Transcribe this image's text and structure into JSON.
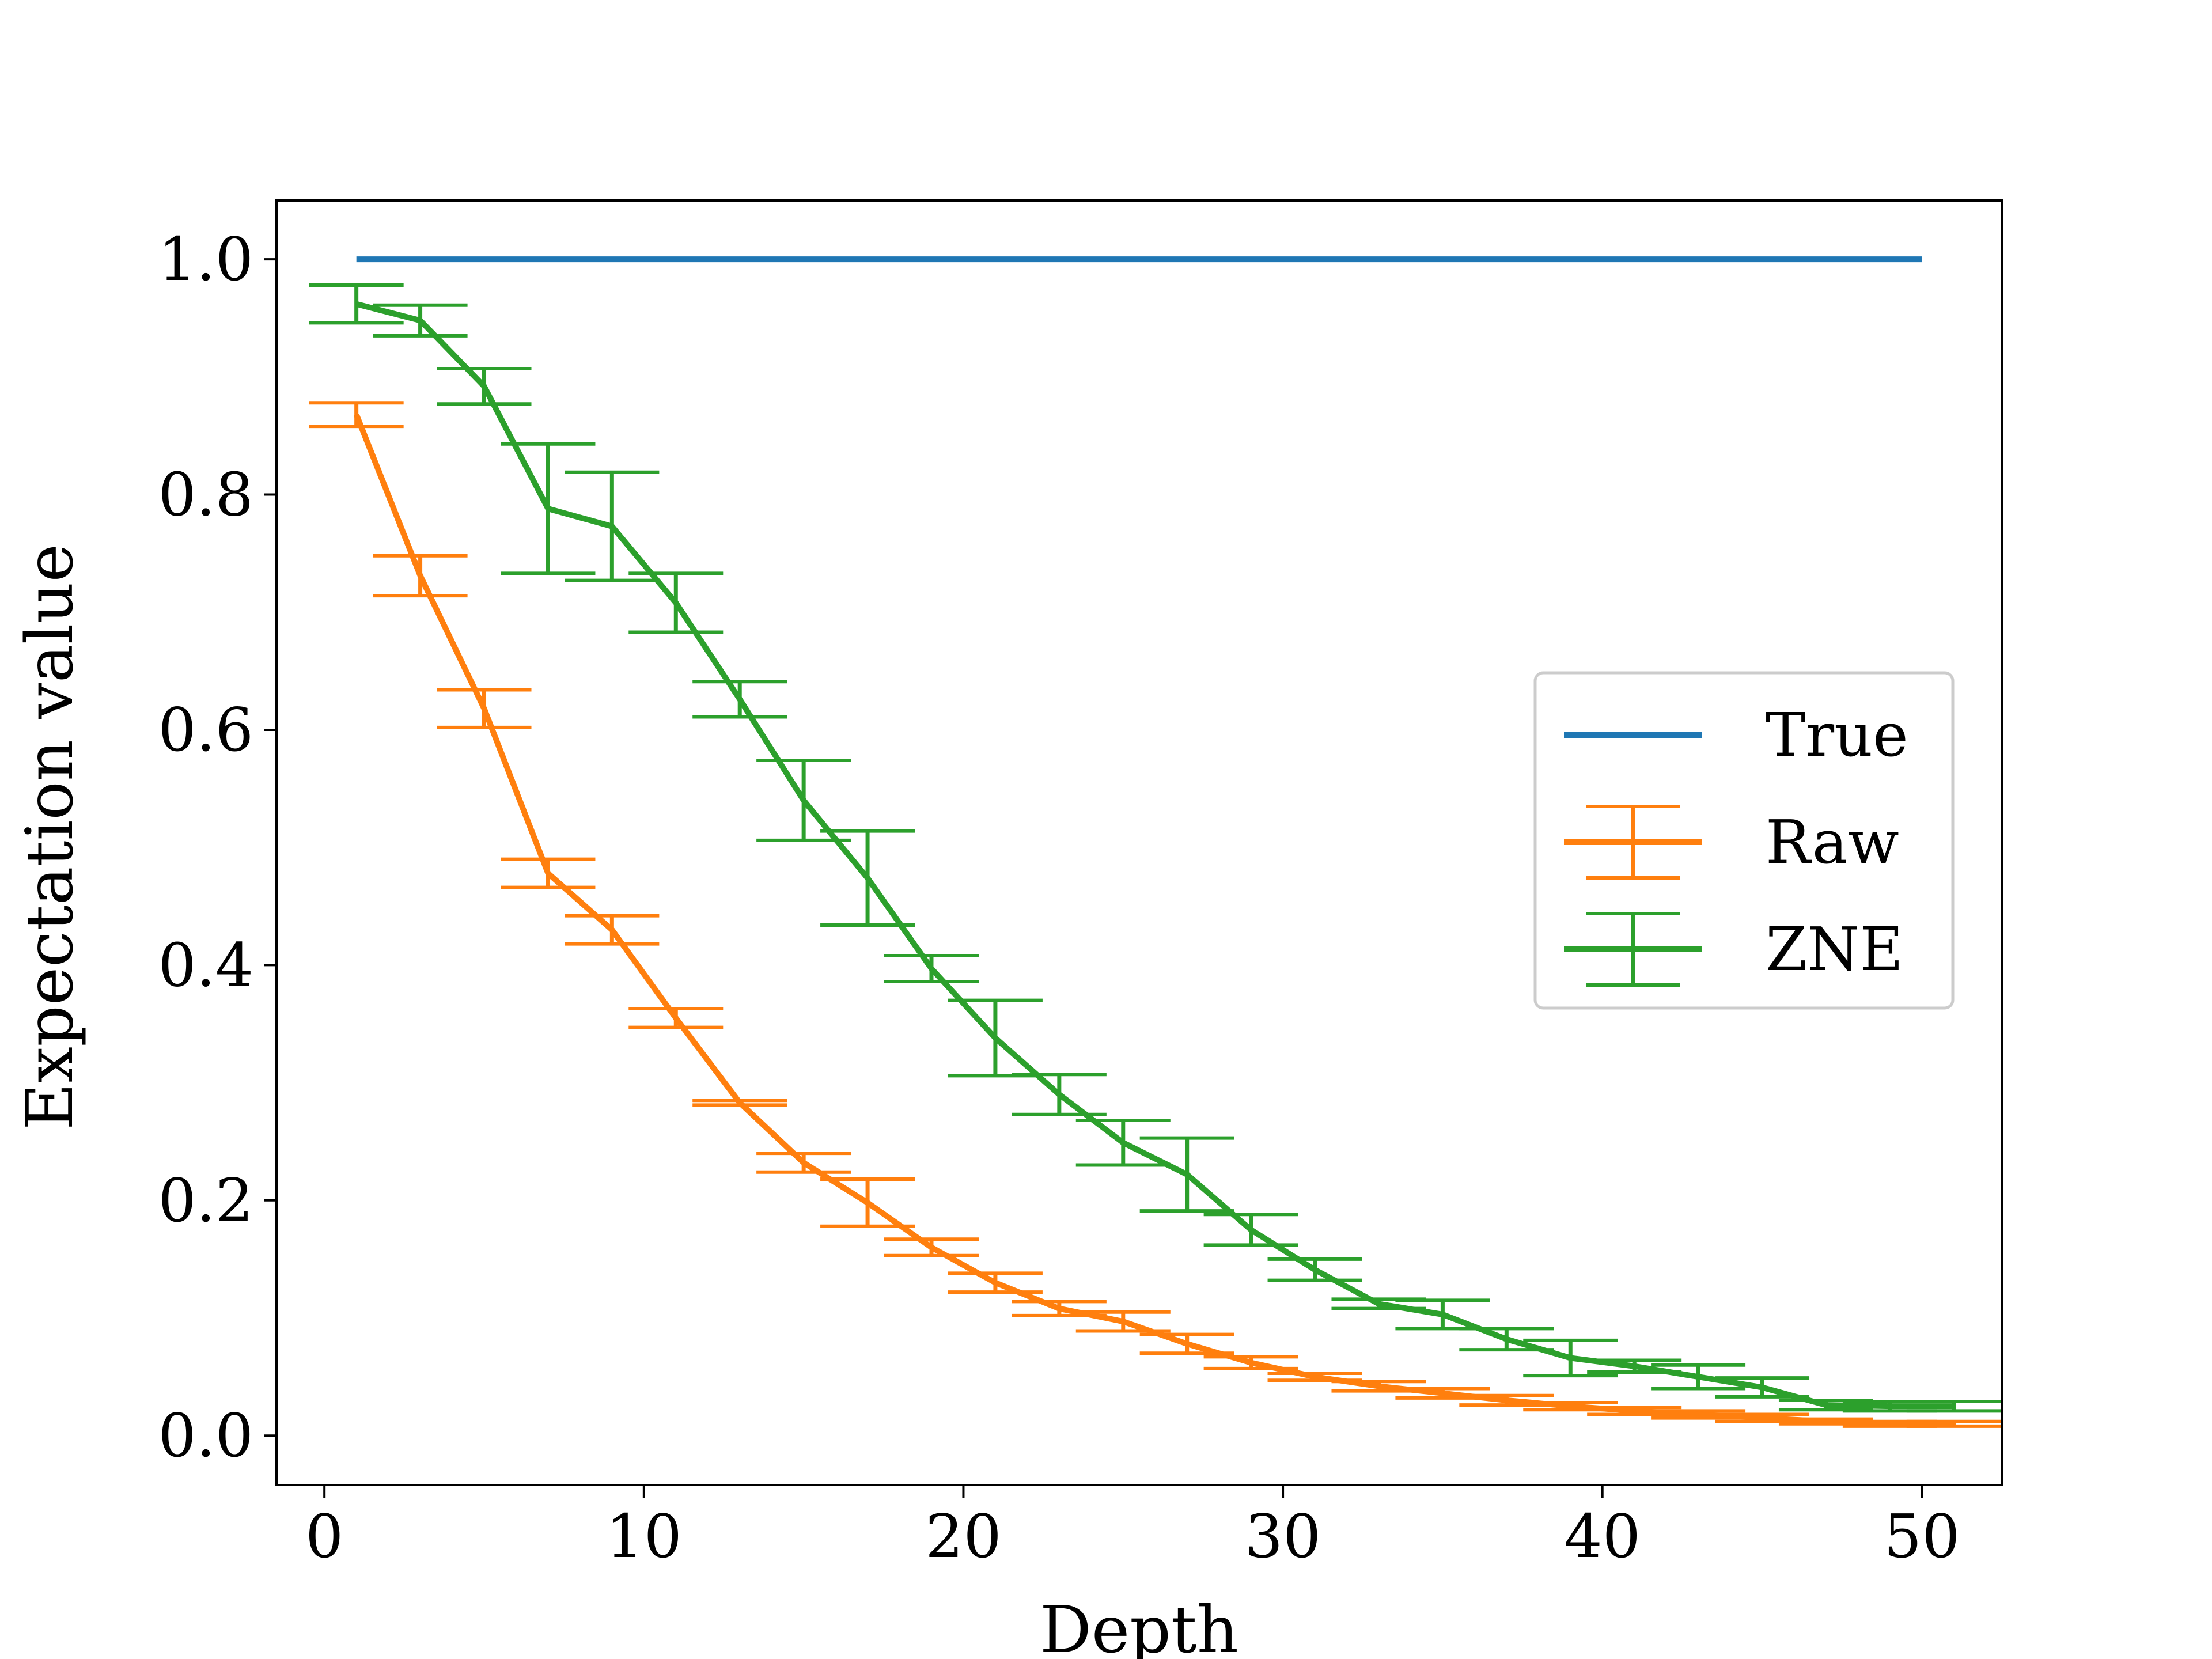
{
  "chart_data": {
    "type": "line",
    "title": "",
    "xlabel": "Depth",
    "ylabel": "Expectation value",
    "xlim": [
      -1.5,
      52.5
    ],
    "ylim": [
      -0.042,
      1.05
    ],
    "xticks": [
      0,
      10,
      20,
      30,
      40,
      50
    ],
    "yticks": [
      0.0,
      0.2,
      0.4,
      0.6,
      0.8,
      1.0
    ],
    "xtick_labels": [
      "0",
      "10",
      "20",
      "30",
      "40",
      "50"
    ],
    "ytick_labels": [
      "0.0",
      "0.2",
      "0.4",
      "0.6",
      "0.8",
      "1.0"
    ],
    "grid": false,
    "legend_position": "center-right",
    "series": [
      {
        "name": "True",
        "color": "#1f77b4",
        "x": [
          1,
          50
        ],
        "y": [
          1.0,
          1.0
        ]
      },
      {
        "name": "Raw",
        "color": "#ff7f0e",
        "x": [
          1,
          3,
          5,
          7,
          9,
          11,
          13,
          15,
          17,
          19,
          21,
          23,
          25,
          27,
          29,
          31,
          33,
          35,
          37,
          39,
          41,
          43,
          45,
          47,
          49,
          51
        ],
        "y": [
          0.868,
          0.731,
          0.618,
          0.478,
          0.43,
          0.355,
          0.283,
          0.232,
          0.198,
          0.16,
          0.13,
          0.108,
          0.097,
          0.078,
          0.062,
          0.05,
          0.042,
          0.036,
          0.03,
          0.025,
          0.021,
          0.018,
          0.015,
          0.012,
          0.01,
          0.01
        ],
        "yerr": [
          0.01,
          0.017,
          0.016,
          0.012,
          0.012,
          0.008,
          0.002,
          0.008,
          0.02,
          0.007,
          0.008,
          0.006,
          0.008,
          0.008,
          0.005,
          0.003,
          0.004,
          0.004,
          0.004,
          0.003,
          0.003,
          0.003,
          0.003,
          0.002,
          0.002,
          0.002
        ]
      },
      {
        "name": "ZNE",
        "color": "#2ca02c",
        "x": [
          1,
          3,
          5,
          7,
          9,
          11,
          13,
          15,
          17,
          19,
          21,
          23,
          25,
          27,
          29,
          31,
          33,
          35,
          37,
          39,
          41,
          43,
          45,
          47,
          49,
          51
        ],
        "y": [
          0.962,
          0.948,
          0.892,
          0.788,
          0.773,
          0.708,
          0.626,
          0.54,
          0.474,
          0.397,
          0.338,
          0.29,
          0.249,
          0.222,
          0.175,
          0.141,
          0.112,
          0.103,
          0.082,
          0.066,
          0.059,
          0.05,
          0.041,
          0.026,
          0.025,
          0.025
        ],
        "yerr": [
          0.016,
          0.013,
          0.015,
          0.055,
          0.046,
          0.025,
          0.015,
          0.034,
          0.04,
          0.011,
          0.032,
          0.017,
          0.019,
          0.031,
          0.013,
          0.009,
          0.004,
          0.012,
          0.009,
          0.015,
          0.005,
          0.01,
          0.008,
          0.004,
          0.004,
          0.004
        ]
      }
    ]
  }
}
